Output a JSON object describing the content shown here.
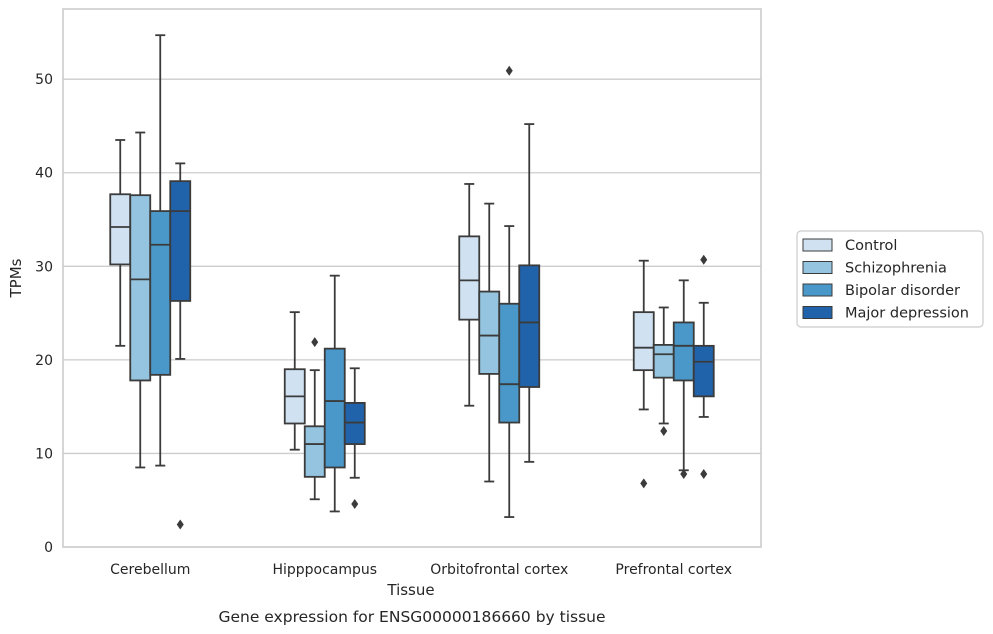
{
  "caption": "Gene expression for ENSG00000186660 by tissue",
  "chart_data": {
    "type": "box",
    "xlabel": "Tissue",
    "ylabel": "TPMs",
    "ylim": [
      0,
      57.5
    ],
    "yticks": [
      0,
      10,
      20,
      30,
      40,
      50
    ],
    "grid": "horizontal",
    "legend_position": "right",
    "categories": [
      "Cerebellum",
      "Hipppocampus",
      "Orbitofrontal cortex",
      "Prefrontal cortex"
    ],
    "series": [
      {
        "name": "Control",
        "color": "#d0e1f2",
        "boxes": [
          {
            "min": 21.5,
            "q1": 30.2,
            "median": 34.2,
            "q3": 37.7,
            "max": 43.5,
            "outliers": []
          },
          {
            "min": 10.4,
            "q1": 13.2,
            "median": 16.1,
            "q3": 19.0,
            "max": 25.1,
            "outliers": []
          },
          {
            "min": 15.1,
            "q1": 24.3,
            "median": 28.5,
            "q3": 33.2,
            "max": 38.8,
            "outliers": []
          },
          {
            "min": 14.7,
            "q1": 18.9,
            "median": 21.3,
            "q3": 25.1,
            "max": 30.6,
            "outliers": [
              6.8
            ]
          }
        ]
      },
      {
        "name": "Schizophrenia",
        "color": "#94c4df",
        "boxes": [
          {
            "min": 8.5,
            "q1": 17.8,
            "median": 28.6,
            "q3": 37.6,
            "max": 44.3,
            "outliers": []
          },
          {
            "min": 5.1,
            "q1": 7.5,
            "median": 11.0,
            "q3": 12.9,
            "max": 18.9,
            "outliers": [
              21.9
            ]
          },
          {
            "min": 7.0,
            "q1": 18.5,
            "median": 22.6,
            "q3": 27.3,
            "max": 36.7,
            "outliers": []
          },
          {
            "min": 13.2,
            "q1": 18.1,
            "median": 20.6,
            "q3": 21.6,
            "max": 25.6,
            "outliers": [
              12.4
            ]
          }
        ]
      },
      {
        "name": "Bipolar disorder",
        "color": "#4a98c9",
        "boxes": [
          {
            "min": 8.7,
            "q1": 18.4,
            "median": 32.3,
            "q3": 35.9,
            "max": 54.7,
            "outliers": []
          },
          {
            "min": 3.8,
            "q1": 8.5,
            "median": 15.6,
            "q3": 21.2,
            "max": 29.0,
            "outliers": []
          },
          {
            "min": 3.2,
            "q1": 13.3,
            "median": 17.4,
            "q3": 26.0,
            "max": 34.3,
            "outliers": [
              50.9
            ]
          },
          {
            "min": 8.2,
            "q1": 17.8,
            "median": 21.5,
            "q3": 24.0,
            "max": 28.5,
            "outliers": [
              7.8
            ]
          }
        ]
      },
      {
        "name": "Major depression",
        "color": "#2163aa",
        "boxes": [
          {
            "min": 20.1,
            "q1": 26.3,
            "median": 35.9,
            "q3": 39.1,
            "max": 41.0,
            "outliers": [
              2.4
            ]
          },
          {
            "min": 7.4,
            "q1": 11.0,
            "median": 13.3,
            "q3": 15.4,
            "max": 19.1,
            "outliers": [
              4.6
            ]
          },
          {
            "min": 9.1,
            "q1": 17.1,
            "median": 24.0,
            "q3": 30.1,
            "max": 45.2,
            "outliers": []
          },
          {
            "min": 13.9,
            "q1": 16.1,
            "median": 19.8,
            "q3": 21.5,
            "max": 26.1,
            "outliers": [
              7.8,
              30.7
            ]
          }
        ]
      }
    ]
  }
}
